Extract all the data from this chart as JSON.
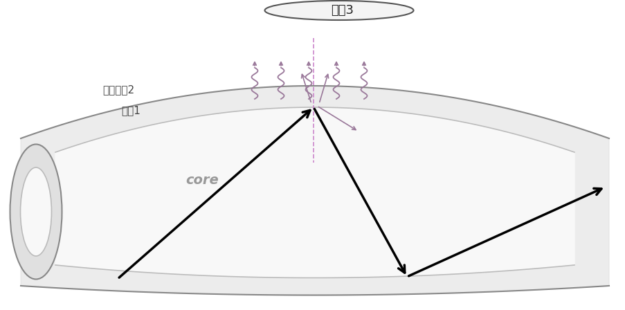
{
  "bg_color": "#ffffff",
  "fiber_color": "#aaaaaa",
  "core_color": "#cccccc",
  "arrow_color": "#000000",
  "wave_color": "#aa88aa",
  "text_color": "#333333",
  "label_jiezhi3": "介质3",
  "label_jiezhi2": "光疏介质2",
  "label_jiezhi1": "介质1",
  "label_core": "core",
  "title_fontsize": 13,
  "label_fontsize": 11,
  "core_label_fontsize": 14
}
